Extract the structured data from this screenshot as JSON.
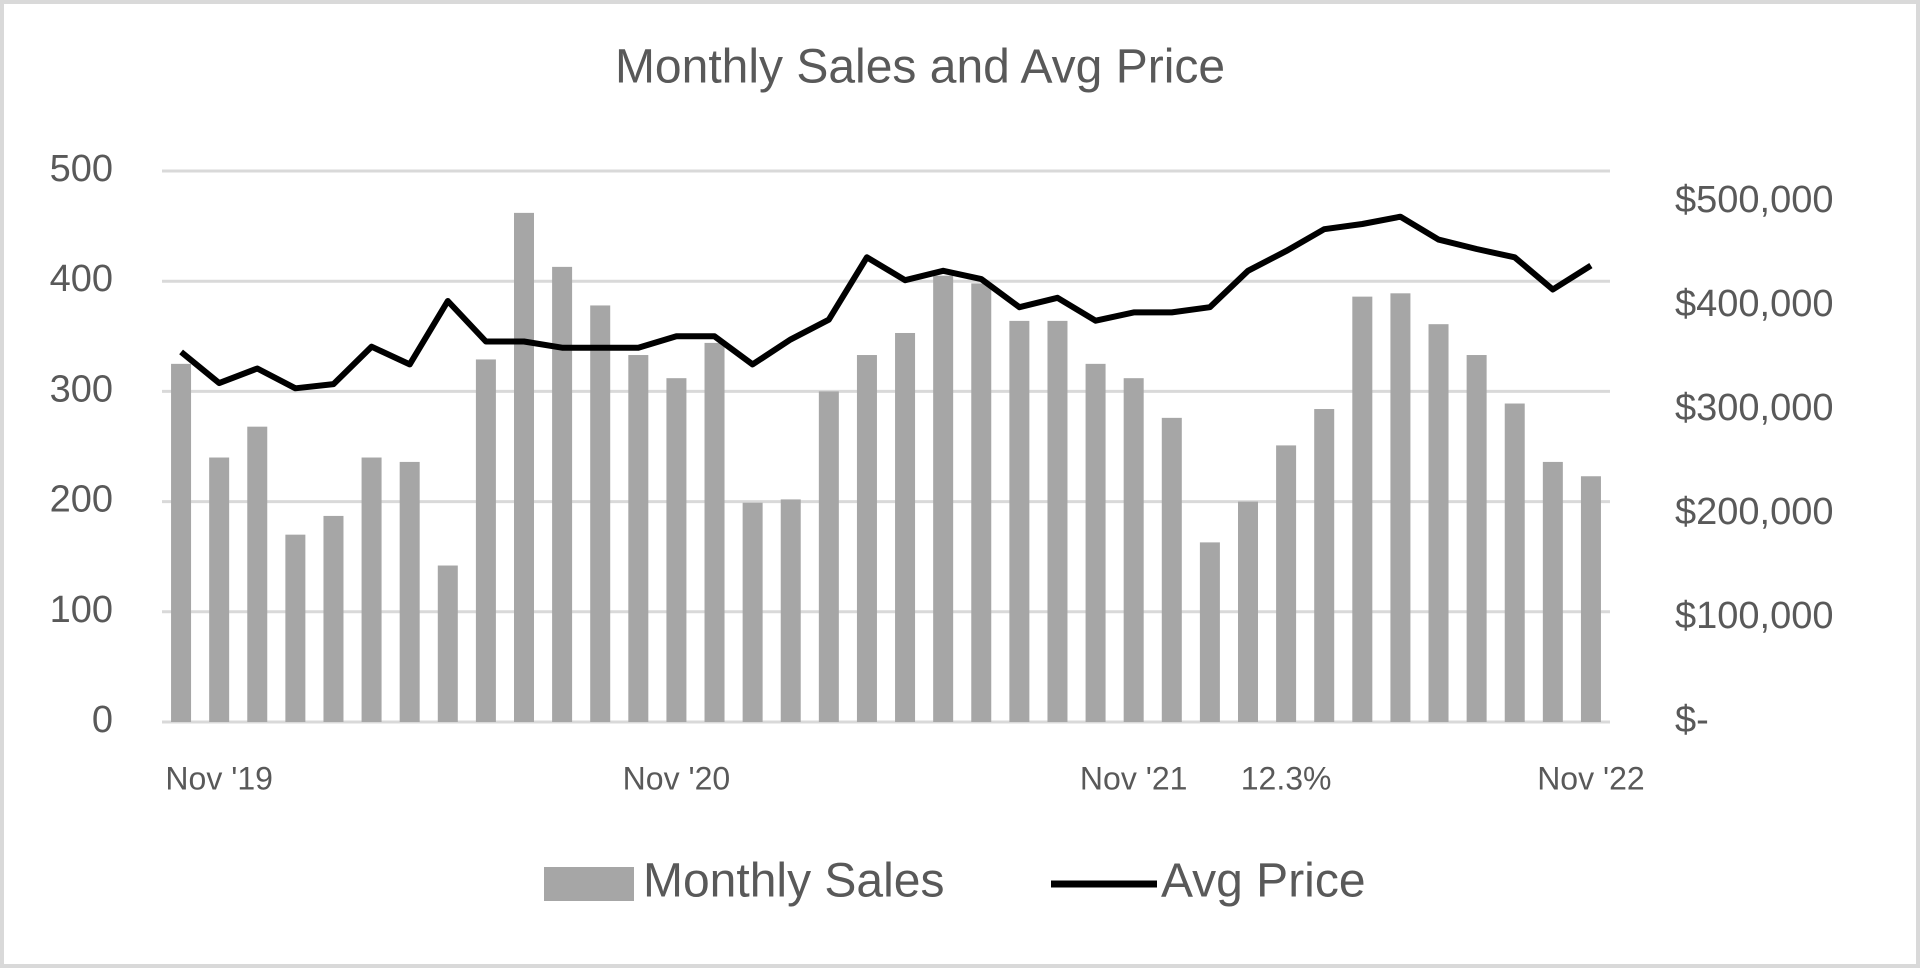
{
  "chart_data": {
    "type": "bar-line",
    "title": "Monthly Sales and Avg Price",
    "categories": [
      null,
      "Nov '19",
      null,
      null,
      null,
      null,
      null,
      null,
      null,
      null,
      null,
      null,
      null,
      "Nov '20",
      null,
      null,
      null,
      null,
      null,
      null,
      null,
      null,
      null,
      null,
      null,
      "Nov '21",
      null,
      null,
      null,
      "12.3%",
      null,
      null,
      null,
      null,
      null,
      null,
      null,
      "Nov '22"
    ],
    "series": [
      {
        "name": "Monthly Sales",
        "color": "#a6a6a6",
        "type": "bar",
        "values": [
          325,
          240,
          268,
          170,
          187,
          240,
          236,
          142,
          329,
          462,
          413,
          378,
          333,
          312,
          344,
          199,
          202,
          300,
          333,
          353,
          405,
          398,
          364,
          364,
          325,
          312,
          276,
          163,
          200,
          251,
          284,
          386,
          389,
          361,
          333,
          289,
          236,
          223
        ]
      },
      {
        "name": "Avg Price",
        "color": "#000000",
        "type": "line",
        "axis": "y2",
        "values": [
          356000,
          326000,
          340000,
          321000,
          325000,
          361000,
          344000,
          405000,
          366000,
          366000,
          360000,
          360000,
          360000,
          371000,
          371000,
          344000,
          368000,
          387000,
          447000,
          425000,
          434000,
          426000,
          399000,
          408000,
          386000,
          394000,
          394000,
          399000,
          434000,
          453000,
          474000,
          479000,
          486000,
          464000,
          455000,
          447000,
          416000,
          439000
        ]
      }
    ],
    "ylim": [
      0,
      500
    ],
    "yticks": [
      0,
      100,
      200,
      300,
      400,
      500
    ],
    "y2lim": [
      0,
      530000
    ],
    "y2ticks": [
      {
        "value": 0,
        "label": "$-"
      },
      {
        "value": 100000,
        "label": "$100,000"
      },
      {
        "value": 200000,
        "label": "$200,000"
      },
      {
        "value": 300000,
        "label": "$300,000"
      },
      {
        "value": 400000,
        "label": "$400,000"
      },
      {
        "value": 500000,
        "label": "$500,000"
      }
    ],
    "grid": true,
    "legend": "bottom"
  }
}
